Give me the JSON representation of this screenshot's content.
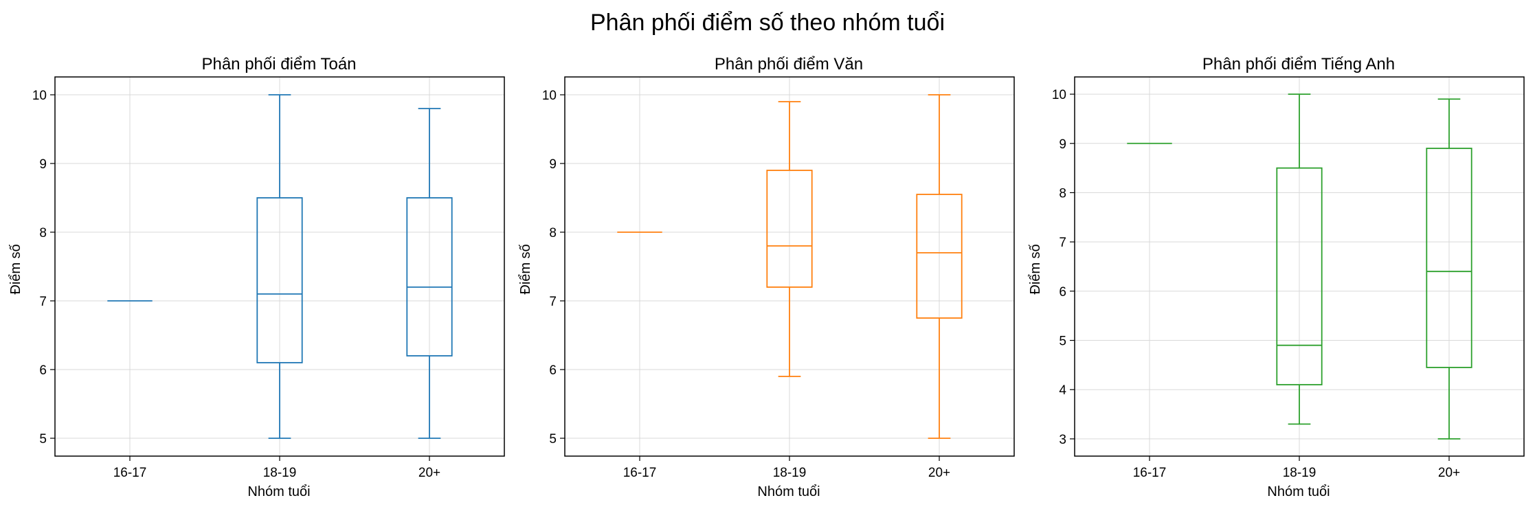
{
  "suptitle": "Phân phối điểm số theo nhóm tuổi",
  "chart_data": [
    {
      "type": "box",
      "title": "Phân phối điểm Toán",
      "xlabel": "Nhóm tuổi",
      "ylabel": "Điểm số",
      "color": "#1f77b4",
      "ylim": [
        4.74,
        10.26
      ],
      "yticks": [
        "5",
        "6",
        "7",
        "8",
        "9",
        "10"
      ],
      "grid": true,
      "categories": [
        "16-17",
        "18-19",
        "20+"
      ],
      "boxes": [
        {
          "whisker_low": 7.0,
          "q1": 7.0,
          "median": 7.0,
          "q3": 7.0,
          "whisker_high": 7.0
        },
        {
          "whisker_low": 5.0,
          "q1": 6.1,
          "median": 7.1,
          "q3": 8.5,
          "whisker_high": 10.0
        },
        {
          "whisker_low": 5.0,
          "q1": 6.2,
          "median": 7.2,
          "q3": 8.5,
          "whisker_high": 9.8
        }
      ]
    },
    {
      "type": "box",
      "title": "Phân phối điểm Văn",
      "xlabel": "Nhóm tuổi",
      "ylabel": "Điểm số",
      "color": "#ff7f0e",
      "ylim": [
        4.74,
        10.26
      ],
      "yticks": [
        "5",
        "6",
        "7",
        "8",
        "9",
        "10"
      ],
      "grid": true,
      "categories": [
        "16-17",
        "18-19",
        "20+"
      ],
      "boxes": [
        {
          "whisker_low": 8.0,
          "q1": 8.0,
          "median": 8.0,
          "q3": 8.0,
          "whisker_high": 8.0
        },
        {
          "whisker_low": 5.9,
          "q1": 7.2,
          "median": 7.8,
          "q3": 8.9,
          "whisker_high": 9.9
        },
        {
          "whisker_low": 5.0,
          "q1": 6.75,
          "median": 7.7,
          "q3": 8.55,
          "whisker_high": 10.0
        }
      ]
    },
    {
      "type": "box",
      "title": "Phân phối điểm Tiếng Anh",
      "xlabel": "Nhóm tuổi",
      "ylabel": "Điểm số",
      "color": "#2ca02c",
      "ylim": [
        2.65,
        10.35
      ],
      "yticks": [
        "3",
        "4",
        "5",
        "6",
        "7",
        "8",
        "9",
        "10"
      ],
      "grid": true,
      "categories": [
        "16-17",
        "18-19",
        "20+"
      ],
      "boxes": [
        {
          "whisker_low": 9.0,
          "q1": 9.0,
          "median": 9.0,
          "q3": 9.0,
          "whisker_high": 9.0
        },
        {
          "whisker_low": 3.3,
          "q1": 4.1,
          "median": 4.9,
          "q3": 8.5,
          "whisker_high": 10.0
        },
        {
          "whisker_low": 3.0,
          "q1": 4.45,
          "median": 6.4,
          "q3": 8.9,
          "whisker_high": 9.9
        }
      ]
    }
  ]
}
